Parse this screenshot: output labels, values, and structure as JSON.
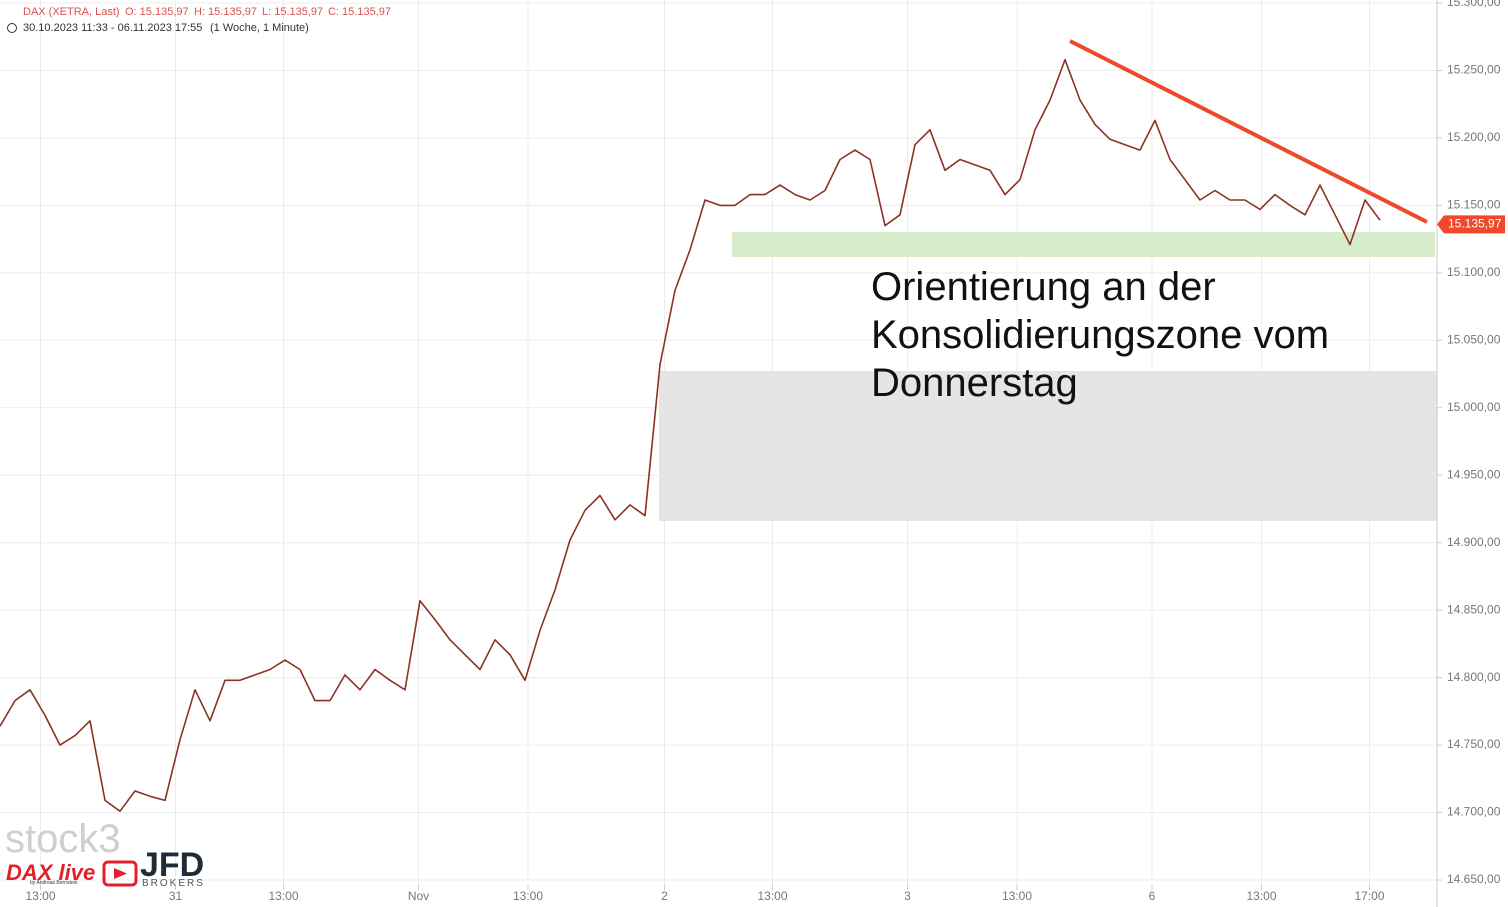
{
  "chart_data": {
    "type": "line",
    "header": {
      "instrument": "DAX (XETRA, Last)",
      "open": "O: 15.135,97",
      "high": "H: 15.135,97",
      "low": "L: 15.135,97",
      "close": "C: 15.135,97",
      "range": "30.10.2023 11:33 - 06.11.2023 17:55",
      "period": "(1 Woche, 1 Minute)"
    },
    "annotation": [
      "Orientierung an der",
      "Konsolidierungszone vom",
      "Donnerstag"
    ],
    "logos": {
      "stock": "stock3",
      "dax": "DAX live",
      "dax_sub": "by Andreas Bernstein",
      "jfd": "JFD",
      "jfd_sub": "BROKERS"
    },
    "last_price": {
      "value": 15135.97,
      "label": "15.135,97"
    },
    "series": [
      {
        "name": "DAX",
        "color": "#8a3324",
        "values": [
          14764,
          14783,
          14791,
          14772,
          14750,
          14757,
          14768,
          14709,
          14701,
          14716,
          14712,
          14709,
          14754,
          14791,
          14768,
          14798,
          14798,
          14802,
          14806,
          14813,
          14806,
          14783,
          14783,
          14802,
          14791,
          14806,
          14798,
          14791,
          14857,
          14843,
          14828,
          14817,
          14806,
          14828,
          14817,
          14798,
          14835,
          14865,
          14902,
          14924,
          14935,
          14917,
          14928,
          14920,
          15032,
          15087,
          15117,
          15154,
          15150,
          15150,
          15158,
          15158,
          15165,
          15158,
          15154,
          15161,
          15184,
          15191,
          15184,
          15135,
          15143,
          15195,
          15206,
          15176,
          15184,
          15180,
          15176,
          15158,
          15169,
          15206,
          15228,
          15258,
          15228,
          15210,
          15199,
          15195,
          15191,
          15213,
          15184,
          15169,
          15154,
          15161,
          15154,
          15154,
          15147,
          15158,
          15150,
          15143,
          15165,
          15143,
          15121,
          15154,
          15139
        ]
      }
    ],
    "xlim": [
      0,
      96
    ],
    "xticks": [
      {
        "value": 2.7,
        "label": "13:00"
      },
      {
        "value": 11.7,
        "label": "31"
      },
      {
        "value": 18.9,
        "label": "13:00"
      },
      {
        "value": 27.9,
        "label": "Nov"
      },
      {
        "value": 35.2,
        "label": "13:00"
      },
      {
        "value": 44.3,
        "label": "2"
      },
      {
        "value": 51.5,
        "label": "13:00"
      },
      {
        "value": 60.5,
        "label": "3"
      },
      {
        "value": 67.8,
        "label": "13:00"
      },
      {
        "value": 76.8,
        "label": "6"
      },
      {
        "value": 84.1,
        "label": "13:00"
      },
      {
        "value": 91.3,
        "label": "17:00"
      }
    ],
    "ylim": [
      14650,
      15300
    ],
    "yticks": [
      {
        "value": 15300,
        "label": "15.300,00"
      },
      {
        "value": 15250,
        "label": "15.250,00"
      },
      {
        "value": 15200,
        "label": "15.200,00"
      },
      {
        "value": 15150,
        "label": "15.150,00"
      },
      {
        "value": 15100,
        "label": "15.100,00"
      },
      {
        "value": 15050,
        "label": "15.050,00"
      },
      {
        "value": 15000,
        "label": "15.000,00"
      },
      {
        "value": 14950,
        "label": "14.950,00"
      },
      {
        "value": 14900,
        "label": "14.900,00"
      },
      {
        "value": 14850,
        "label": "14.850,00"
      },
      {
        "value": 14800,
        "label": "14.800,00"
      },
      {
        "value": 14750,
        "label": "14.750,00"
      },
      {
        "value": 14700,
        "label": "14.700,00"
      },
      {
        "value": 14650,
        "label": "14.650,00"
      }
    ],
    "grid": true
  }
}
